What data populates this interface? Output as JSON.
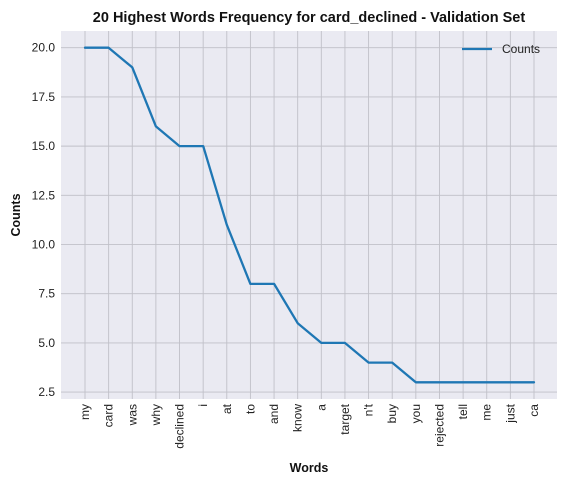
{
  "chart_data": {
    "type": "line",
    "title": "20 Highest Words Frequency for card_declined - Validation Set",
    "xlabel": "Words",
    "ylabel": "Counts",
    "categories": [
      "my",
      "card",
      "was",
      "why",
      "declined",
      "i",
      "at",
      "to",
      "and",
      "know",
      "a",
      "target",
      "n't",
      "buy",
      "you",
      "rejected",
      "tell",
      "me",
      "just",
      "ca"
    ],
    "series": [
      {
        "name": "Counts",
        "values": [
          20,
          20,
          19,
          16,
          15,
          15,
          11,
          8,
          8,
          6,
          5,
          5,
          4,
          4,
          3,
          3,
          3,
          3,
          3,
          3
        ]
      }
    ],
    "ylim": [
      2.15,
      20.85
    ],
    "yticks": [
      "2.5",
      "5.0",
      "7.5",
      "10.0",
      "12.5",
      "15.0",
      "17.5",
      "20.0"
    ],
    "grid": true,
    "legend": "top-right",
    "colors": {
      "line": "#1f77b4",
      "plot_bg": "#eaeaf2",
      "grid": "#c0c0c8"
    }
  }
}
